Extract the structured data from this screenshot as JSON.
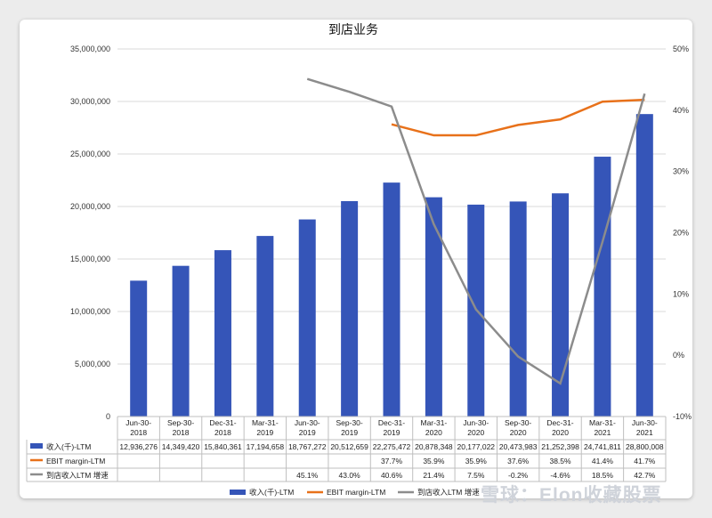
{
  "chart_data": {
    "type": "bar",
    "title": "到店业务",
    "categories": [
      [
        "Jun-30-",
        "2018"
      ],
      [
        "Sep-30-",
        "2018"
      ],
      [
        "Dec-31-",
        "2018"
      ],
      [
        "Mar-31-",
        "2019"
      ],
      [
        "Jun-30-",
        "2019"
      ],
      [
        "Sep-30-",
        "2019"
      ],
      [
        "Dec-31-",
        "2019"
      ],
      [
        "Mar-31-",
        "2020"
      ],
      [
        "Jun-30-",
        "2020"
      ],
      [
        "Sep-30-",
        "2020"
      ],
      [
        "Dec-31-",
        "2020"
      ],
      [
        "Mar-31-",
        "2021"
      ],
      [
        "Jun-30-",
        "2021"
      ]
    ],
    "y_left": {
      "range": [
        0,
        35000000
      ],
      "ticks": [
        "0",
        "5,000,000",
        "10,000,000",
        "15,000,000",
        "20,000,000",
        "25,000,000",
        "30,000,000",
        "35,000,000"
      ]
    },
    "y_right": {
      "range": [
        -10,
        50
      ],
      "ticks": [
        "-10%",
        "0%",
        "10%",
        "20%",
        "30%",
        "40%",
        "50%"
      ]
    },
    "series": [
      {
        "name": "收入(千)-LTM",
        "type": "bar",
        "axis": "left",
        "color": "#3555b8",
        "values": [
          12936276,
          14349420,
          15840361,
          17194658,
          18767272,
          20512659,
          22275472,
          20878348,
          20177022,
          20473983,
          21252398,
          24741811,
          28800008
        ],
        "labels": [
          "12,936,276",
          "14,349,420",
          "15,840,361",
          "17,194,658",
          "18,767,272",
          "20,512,659",
          "22,275,472",
          "20,878,348",
          "20,177,022",
          "20,473,983",
          "21,252,398",
          "24,741,811",
          "28,800,008"
        ]
      },
      {
        "name": "EBIT margin-LTM",
        "type": "line",
        "axis": "right",
        "color": "#e8711a",
        "values": [
          null,
          null,
          null,
          null,
          null,
          null,
          37.7,
          35.9,
          35.9,
          37.6,
          38.5,
          41.4,
          41.7
        ],
        "labels": [
          "",
          "",
          "",
          "",
          "",
          "",
          "37.7%",
          "35.9%",
          "35.9%",
          "37.6%",
          "38.5%",
          "41.4%",
          "41.7%"
        ]
      },
      {
        "name": "到店收入LTM 增速",
        "type": "line",
        "axis": "right",
        "color": "#8c8c8c",
        "values": [
          null,
          null,
          null,
          null,
          45.1,
          43.0,
          40.6,
          21.4,
          7.5,
          -0.2,
          -4.6,
          18.5,
          42.7
        ],
        "labels": [
          "",
          "",
          "",
          "",
          "45.1%",
          "43.0%",
          "40.6%",
          "21.4%",
          "7.5%",
          "-0.2%",
          "-4.6%",
          "18.5%",
          "42.7%"
        ]
      }
    ],
    "legend": {
      "position": "bottom",
      "items": [
        "收入(千)-LTM",
        "EBIT margin-LTM",
        "到店收入LTM 增速"
      ]
    },
    "grid": true
  },
  "watermark": "雪球：Elon收藏股票"
}
